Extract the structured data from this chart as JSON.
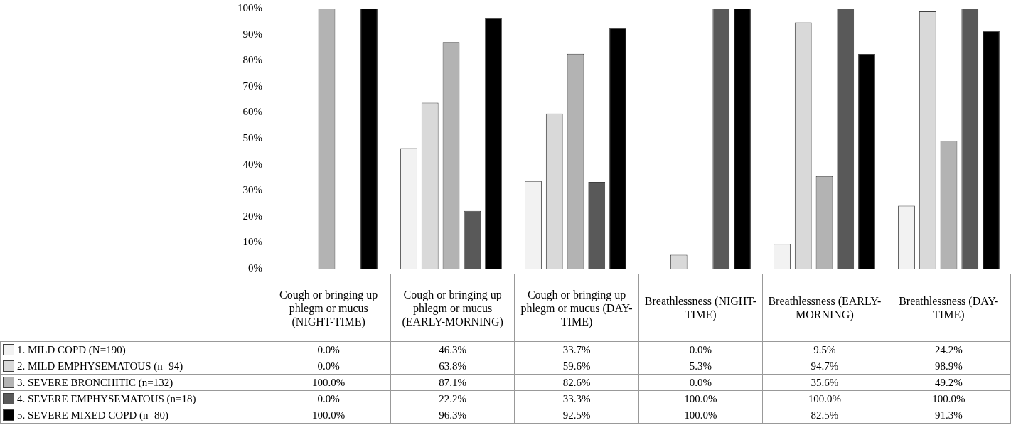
{
  "chart_data": {
    "type": "bar",
    "categories": [
      "Cough or bringing up phlegm or mucus (NIGHT-TIME)",
      "Cough or bringing up phlegm or mucus (EARLY-MORNING)",
      "Cough or bringing up phlegm or mucus (DAY-TIME)",
      "Breathlessness (NIGHT-TIME)",
      "Breathlessness (EARLY-MORNING)",
      "Breathlessness (DAY-TIME)"
    ],
    "series": [
      {
        "name": "1. MILD COPD (N=190)",
        "color": "#f2f2f2",
        "values": [
          0.0,
          46.3,
          33.7,
          0.0,
          9.5,
          24.2
        ],
        "value_labels": [
          "0.0%",
          "46.3%",
          "33.7%",
          "0.0%",
          "9.5%",
          "24.2%"
        ]
      },
      {
        "name": "2. MILD EMPHYSEMATOUS  (n=94)",
        "color": "#d9d9d9",
        "values": [
          0.0,
          63.8,
          59.6,
          5.3,
          94.7,
          98.9
        ],
        "value_labels": [
          "0.0%",
          "63.8%",
          "59.6%",
          "5.3%",
          "94.7%",
          "98.9%"
        ]
      },
      {
        "name": "3. SEVERE BRONCHITIC (n=132)",
        "color": "#b3b3b3",
        "values": [
          100.0,
          87.1,
          82.6,
          0.0,
          35.6,
          49.2
        ],
        "value_labels": [
          "100.0%",
          "87.1%",
          "82.6%",
          "0.0%",
          "35.6%",
          "49.2%"
        ]
      },
      {
        "name": "4. SEVERE EMPHYSEMATOUS (n=18)",
        "color": "#595959",
        "values": [
          0.0,
          22.2,
          33.3,
          100.0,
          100.0,
          100.0
        ],
        "value_labels": [
          "0.0%",
          "22.2%",
          "33.3%",
          "100.0%",
          "100.0%",
          "100.0%"
        ]
      },
      {
        "name": "5. SEVERE MIXED COPD (n=80)",
        "color": "#000000",
        "values": [
          100.0,
          96.3,
          92.5,
          100.0,
          82.5,
          91.3
        ],
        "value_labels": [
          "100.0%",
          "96.3%",
          "92.5%",
          "100.0%",
          "82.5%",
          "91.3%"
        ]
      }
    ],
    "ylim": [
      0,
      100
    ],
    "yticks": [
      {
        "value": 0,
        "label": "0%"
      },
      {
        "value": 10,
        "label": "10%"
      },
      {
        "value": 20,
        "label": "20%"
      },
      {
        "value": 30,
        "label": "30%"
      },
      {
        "value": 40,
        "label": "40%"
      },
      {
        "value": 50,
        "label": "50%"
      },
      {
        "value": 60,
        "label": "60%"
      },
      {
        "value": 70,
        "label": "70%"
      },
      {
        "value": 80,
        "label": "80%"
      },
      {
        "value": 90,
        "label": "90%"
      },
      {
        "value": 100,
        "label": "100%"
      }
    ],
    "grid": false,
    "legend": "bottom left"
  }
}
